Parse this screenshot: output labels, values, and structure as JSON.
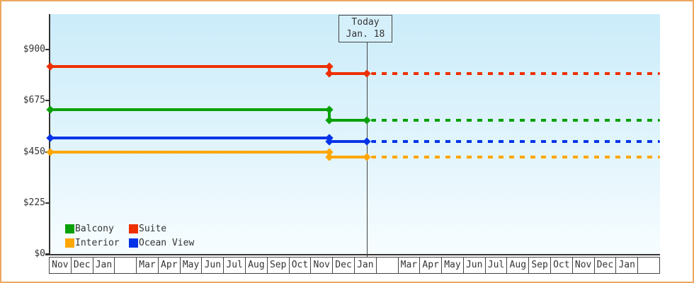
{
  "chart_data": {
    "type": "line",
    "title": "",
    "description": "Cruise cabin price history by category; solid history until today, dashed projection after",
    "y_axis": {
      "ylim": [
        0,
        900
      ],
      "ticks": [
        {
          "value": 900,
          "label": "$900"
        },
        {
          "value": 675,
          "label": "$675"
        },
        {
          "value": 450,
          "label": "$450"
        },
        {
          "value": 225,
          "label": "$225"
        },
        {
          "value": 0,
          "label": "$0"
        }
      ]
    },
    "x_axis": {
      "months": [
        "Nov",
        "Dec",
        "Jan",
        "",
        "Mar",
        "Apr",
        "May",
        "Jun",
        "Jul",
        "Aug",
        "Sep",
        "Oct",
        "Nov",
        "Dec",
        "Jan",
        "",
        "Mar",
        "Apr",
        "May",
        "Jun",
        "Jul",
        "Aug",
        "Sep",
        "Oct",
        "Nov",
        "Dec",
        "Jan",
        ""
      ]
    },
    "today_marker": {
      "title": "Today",
      "date": "Jan. 18",
      "month_index": 14,
      "fraction": 0.58
    },
    "price_drop_point": {
      "month_index": 12,
      "fraction": 0.85,
      "approx_date": "late Nov"
    },
    "series": [
      {
        "name": "Suite",
        "color": "#ee2f00",
        "price_start": 825,
        "price_current": 795
      },
      {
        "name": "Balcony",
        "color": "#0aa00a",
        "price_start": 635,
        "price_current": 590
      },
      {
        "name": "Ocean View",
        "color": "#0533e8",
        "price_start": 512,
        "price_current": 495
      },
      {
        "name": "Interior",
        "color": "#ffa600",
        "price_start": 450,
        "price_current": 427
      }
    ],
    "legend": [
      {
        "label": "Balcony",
        "color": "#0aa00a"
      },
      {
        "label": "Suite",
        "color": "#ee2f00"
      },
      {
        "label": "Interior",
        "color": "#ffa600"
      },
      {
        "label": "Ocean View",
        "color": "#0533e8"
      }
    ],
    "line_style": {
      "dashed_after_today": true
    }
  },
  "colors": {
    "plot_bg_top": "#cbecfa",
    "plot_bg_bottom": "#f7fdff",
    "axis": "#333333",
    "frame_border": "#eca95e",
    "today_line": "#444444",
    "text": "#333333"
  }
}
